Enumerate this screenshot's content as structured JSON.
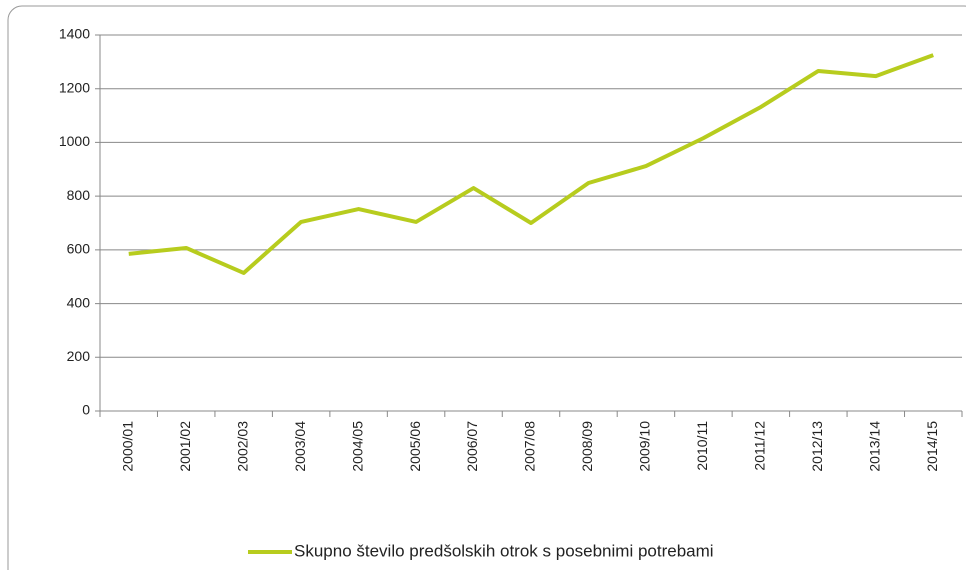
{
  "chart_data": {
    "type": "line",
    "categories": [
      "2000/01",
      "2001/02",
      "2002/03",
      "2003/04",
      "2004/05",
      "2005/06",
      "2006/07",
      "2007/08",
      "2008/09",
      "2009/10",
      "2010/11",
      "2011/12",
      "2012/13",
      "2013/14",
      "2014/15"
    ],
    "series": [
      {
        "name": "Skupno število predšolskih otrok s posebnimi potrebami",
        "color": "#b7cc1e",
        "values": [
          585,
          607,
          514,
          704,
          752,
          704,
          830,
          700,
          849,
          912,
          1016,
          1132,
          1266,
          1247,
          1325
        ]
      }
    ],
    "ylim": [
      0,
      1400
    ],
    "yticks": [
      0,
      200,
      400,
      600,
      800,
      1000,
      1200,
      1400
    ],
    "grid": true,
    "legend": "bottom"
  }
}
